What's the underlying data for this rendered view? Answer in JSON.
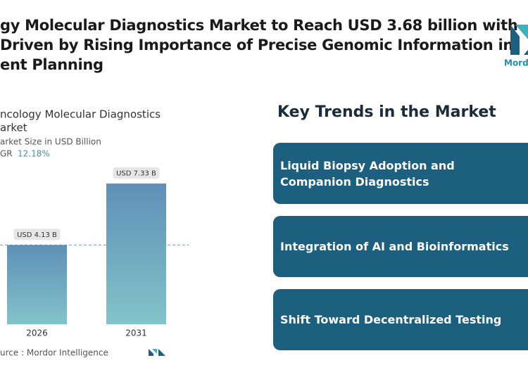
{
  "header": {
    "title_lines": [
      "gy Molecular Diagnostics Market to Reach USD 3.68 billion with",
      "Driven by Rising Importance of Precise Genomic Information in",
      "ent Planning"
    ]
  },
  "logo": {
    "text": "Mordo"
  },
  "chart_data": {
    "type": "bar",
    "title_lines": [
      "ncology Molecular Diagnostics",
      "arket"
    ],
    "subtitle": "arket Size in USD Billion",
    "cagr_label": "GR",
    "cagr_value": "12.18%",
    "categories": [
      "2026",
      "2031"
    ],
    "values": [
      4.13,
      7.33
    ],
    "value_labels": [
      "USD 4.13 B",
      "USD 7.33 B"
    ],
    "source": "urce :  Mordor Intelligence"
  },
  "key_trends": {
    "title": "Key Trends in the Market",
    "items": [
      "Liquid Biopsy Adoption and Companion Diagnostics",
      "Integration of AI and Bioinformatics",
      "Shift Toward Decentralized Testing"
    ]
  }
}
